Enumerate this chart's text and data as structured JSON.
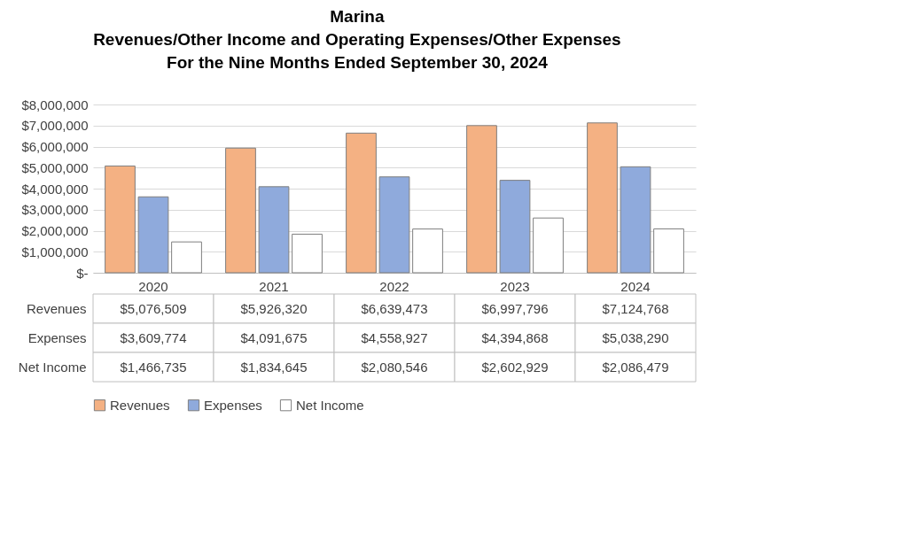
{
  "chart_data": {
    "type": "bar",
    "title": [
      "Marina",
      "Revenues/Other Income and Operating Expenses/Other Expenses",
      "For the Nine Months Ended September 30, 2024"
    ],
    "categories": [
      "2020",
      "2021",
      "2022",
      "2023",
      "2024"
    ],
    "series": [
      {
        "name": "Revenues",
        "color": "#f4b183",
        "values": [
          5076509,
          5926320,
          6639473,
          6997796,
          7124768
        ],
        "value_labels": [
          "$5,076,509",
          "$5,926,320",
          "$6,639,473",
          "$6,997,796",
          "$7,124,768"
        ]
      },
      {
        "name": "Expenses",
        "color": "#8faadc",
        "values": [
          3609774,
          4091675,
          4558927,
          4394868,
          5038290
        ],
        "value_labels": [
          "$3,609,774",
          "$4,091,675",
          "$4,558,927",
          "$4,394,868",
          "$5,038,290"
        ]
      },
      {
        "name": "Net Income",
        "color": "#ffffff",
        "values": [
          1466735,
          1834645,
          2080546,
          2602929,
          2086479
        ],
        "value_labels": [
          "$1,466,735",
          "$1,834,645",
          "$2,080,546",
          "$2,602,929",
          "$2,086,479"
        ]
      }
    ],
    "ylim": [
      0,
      8000000
    ],
    "yticks": [
      {
        "value": 0,
        "label": "$-"
      },
      {
        "value": 1000000,
        "label": "$1,000,000"
      },
      {
        "value": 2000000,
        "label": "$2,000,000"
      },
      {
        "value": 3000000,
        "label": "$3,000,000"
      },
      {
        "value": 4000000,
        "label": "$4,000,000"
      },
      {
        "value": 5000000,
        "label": "$5,000,000"
      },
      {
        "value": 6000000,
        "label": "$6,000,000"
      },
      {
        "value": 7000000,
        "label": "$7,000,000"
      },
      {
        "value": 8000000,
        "label": "$8,000,000"
      }
    ],
    "grid": "y",
    "legend": "bottom"
  }
}
